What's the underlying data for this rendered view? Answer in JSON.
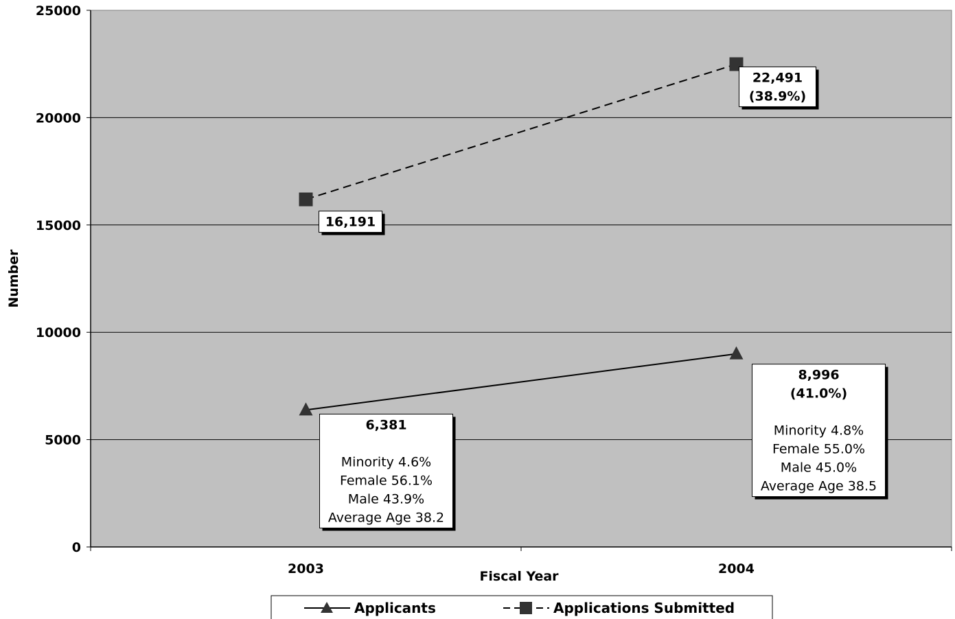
{
  "chart_data": {
    "type": "line",
    "title": "",
    "xlabel": "Fiscal Year",
    "ylabel": "Number",
    "categories": [
      "2003",
      "2004"
    ],
    "ylim": [
      0,
      25000
    ],
    "yticks": [
      0,
      5000,
      10000,
      15000,
      20000,
      25000
    ],
    "yticks_labels": [
      "0",
      "5000",
      "10000",
      "15000",
      "20000",
      "25000"
    ],
    "grid": true,
    "plot_background": "#c0c0c0",
    "legend_position": "bottom",
    "series": [
      {
        "name": "Applicants",
        "values": [
          6381,
          8996
        ],
        "line_style": "solid",
        "marker": "triangle",
        "color": "#000000",
        "marker_color": "#333333",
        "labels": [
          {
            "bold": [
              "6,381"
            ],
            "normal": [
              "Minority 4.6%",
              "Female 56.1%",
              "Male 43.9%",
              "Average Age 38.2"
            ]
          },
          {
            "bold": [
              "8,996",
              "(41.0%)"
            ],
            "normal": [
              "Minority 4.8%",
              "Female 55.0%",
              "Male 45.0%",
              "Average Age 38.5"
            ]
          }
        ]
      },
      {
        "name": "Applications Submitted",
        "values": [
          16191,
          22491
        ],
        "line_style": "dashed",
        "marker": "square",
        "color": "#000000",
        "marker_color": "#333333",
        "labels": [
          {
            "bold": [
              "16,191"
            ],
            "normal": []
          },
          {
            "bold": [
              "22,491",
              "(38.9%)"
            ],
            "normal": []
          }
        ]
      }
    ]
  }
}
